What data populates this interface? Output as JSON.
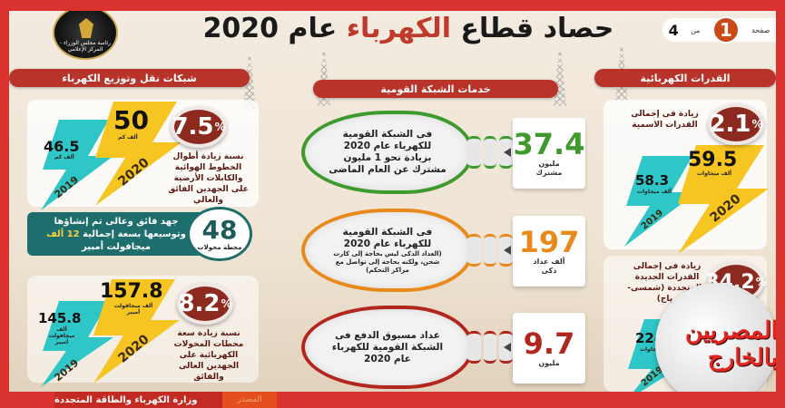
{
  "header": {
    "title_prefix": "حصاد قطاع",
    "title_highlight": "الكهرباء",
    "title_suffix": "عام 2020",
    "pager": {
      "label": "صفحة",
      "current": "1",
      "of": "من",
      "total": "4"
    },
    "logo_text": "رئاسة مجلس الوزراء - المركز الإعلامي"
  },
  "sections": {
    "left": "شبكات نقل وتوزيع الكهرباء",
    "middle": "خدمات الشبكة القومية",
    "right": "القدرات الكهربائية"
  },
  "left": {
    "lines": {
      "percent": "7.5",
      "percent_sign": "%",
      "desc": "نسبة زيادة أطوال الخطوط الهوائية والكابلات الأرضية على الجهدين الفائق والعالي",
      "v2020": "50",
      "u2020": "ألف كم",
      "y2020": "2020",
      "v2019": "46.5",
      "u2019": "ألف كم",
      "y2019": "2019"
    },
    "stations": {
      "count": "48",
      "count_label": "محطة محولات",
      "text1": "جهد فائق وعالى تم إنشاؤها وتوسيعها بسعة إجمالية",
      "text_highlight": "12 ألف",
      "text2": "ميجافولت أمبير"
    },
    "capacity": {
      "percent": "8.2",
      "percent_sign": "%",
      "desc": "نسبة زيادة سعة محطات المحولات الكهربائية على الجهدين العالى والفائق",
      "v2020": "157.8",
      "u2020": "ألف ميجافولت أمبير",
      "y2020": "2020",
      "v2019": "145.8",
      "u2019": "ألف ميجافولت أمبير",
      "y2019": "2019"
    }
  },
  "middle": {
    "items": [
      {
        "text": "فى الشبكة القومية للكهرباء عام 2020 بزيادة نحو 1 مليون مشترك عن العام الماضى",
        "note": "",
        "value": "37.4",
        "unit": "مليون مشترك",
        "color": "#3f9a2e"
      },
      {
        "text": "فى الشبكة القومية للكهرباء عام 2020",
        "note": "(العداد الذكى ليس بحاجة إلى كارت شحن، ولكنه بحاجة إلى تواصل مع مراكز التحكم)",
        "value": "197",
        "unit": "ألف عداد ذكى",
        "color": "#e8891c"
      },
      {
        "text": "عداد مسبوق الدفع فى الشبكة القومية للكهرباء عام 2020",
        "note": "",
        "value": "9.7",
        "unit": "مليون",
        "color": "#b3261e"
      }
    ]
  },
  "right": {
    "nominal": {
      "percent": "2.1",
      "percent_sign": "%",
      "desc": "زيادة فى إجمالى القدرات الاسمية",
      "v2020": "59.5",
      "u2020": "ألف ميجاوات",
      "y2020": "2020",
      "v2019": "58.3",
      "u2019": "ألف ميجاوات",
      "y2019": "2019"
    },
    "renewable": {
      "percent": "34.2",
      "percent_sign": "%",
      "desc": "زيادة فى إجمالى القدرات الجديدة والمتجددة (شمسى- رياح)",
      "v2019": "224",
      "u2019": "ميجاوات",
      "y2019": "2019"
    }
  },
  "footer": {
    "source_label": "المصدر",
    "source": "وزارة الكهرباء والطاقة المتجددة"
  },
  "watermark": "المصريين بالخارج",
  "colors": {
    "frame": "#d9322f",
    "section": "#b8342a",
    "teal": "#2ec6c6",
    "yellow": "#f6c521",
    "percent_badge": "#8d2a1f"
  }
}
